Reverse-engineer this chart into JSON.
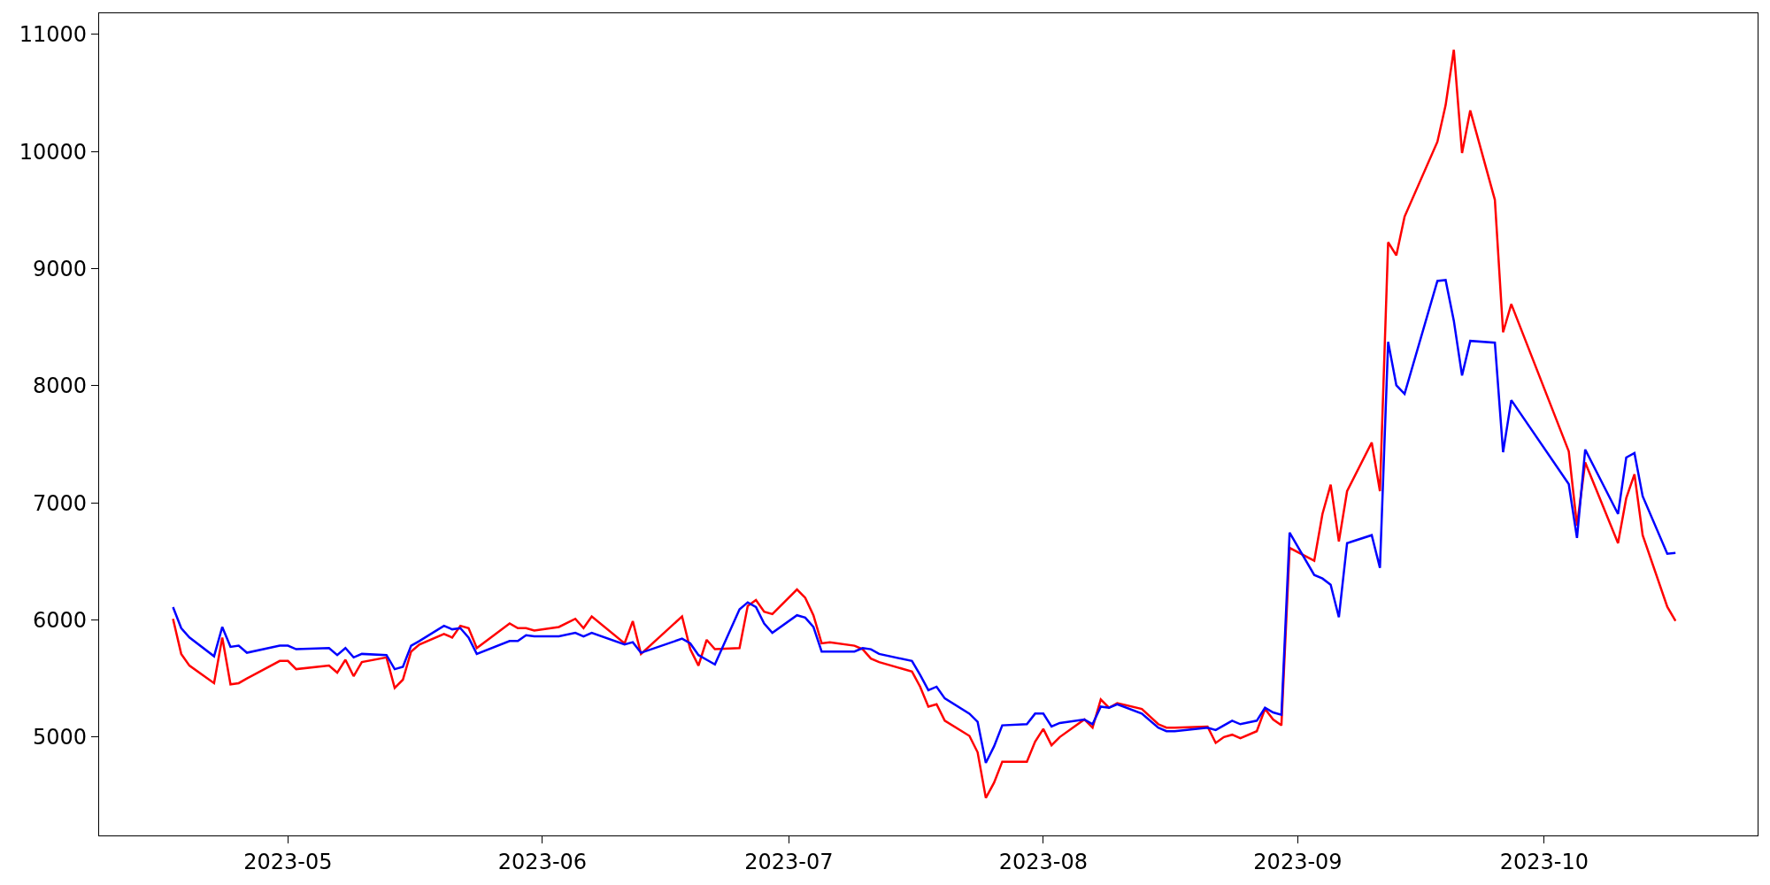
{
  "chart_data": {
    "type": "line",
    "x": [
      "2023-04-17",
      "2023-04-18",
      "2023-04-19",
      "2023-04-22",
      "2023-04-23",
      "2023-04-24",
      "2023-04-25",
      "2023-04-26",
      "2023-04-30",
      "2023-05-01",
      "2023-05-02",
      "2023-05-06",
      "2023-05-07",
      "2023-05-08",
      "2023-05-09",
      "2023-05-10",
      "2023-05-13",
      "2023-05-14",
      "2023-05-15",
      "2023-05-16",
      "2023-05-17",
      "2023-05-20",
      "2023-05-21",
      "2023-05-22",
      "2023-05-23",
      "2023-05-24",
      "2023-05-28",
      "2023-05-29",
      "2023-05-30",
      "2023-05-31",
      "2023-06-03",
      "2023-06-05",
      "2023-06-06",
      "2023-06-07",
      "2023-06-11",
      "2023-06-12",
      "2023-06-13",
      "2023-06-18",
      "2023-06-19",
      "2023-06-20",
      "2023-06-21",
      "2023-06-22",
      "2023-06-25",
      "2023-06-26",
      "2023-06-27",
      "2023-06-28",
      "2023-06-29",
      "2023-07-02",
      "2023-07-03",
      "2023-07-04",
      "2023-07-05",
      "2023-07-06",
      "2023-07-09",
      "2023-07-10",
      "2023-07-11",
      "2023-07-12",
      "2023-07-16",
      "2023-07-17",
      "2023-07-18",
      "2023-07-19",
      "2023-07-20",
      "2023-07-23",
      "2023-07-24",
      "2023-07-25",
      "2023-07-26",
      "2023-07-27",
      "2023-07-30",
      "2023-07-31",
      "2023-08-01",
      "2023-08-02",
      "2023-08-03",
      "2023-08-06",
      "2023-08-07",
      "2023-08-08",
      "2023-08-09",
      "2023-08-10",
      "2023-08-13",
      "2023-08-15",
      "2023-08-16",
      "2023-08-17",
      "2023-08-21",
      "2023-08-22",
      "2023-08-23",
      "2023-08-24",
      "2023-08-25",
      "2023-08-27",
      "2023-08-28",
      "2023-08-29",
      "2023-08-30",
      "2023-08-31",
      "2023-09-03",
      "2023-09-04",
      "2023-09-05",
      "2023-09-06",
      "2023-09-07",
      "2023-09-10",
      "2023-09-11",
      "2023-09-12",
      "2023-09-13",
      "2023-09-14",
      "2023-09-18",
      "2023-09-19",
      "2023-09-20",
      "2023-09-21",
      "2023-09-22",
      "2023-09-25",
      "2023-09-26",
      "2023-09-27",
      "2023-10-04",
      "2023-10-05",
      "2023-10-06",
      "2023-10-10",
      "2023-10-11",
      "2023-10-12",
      "2023-10-13",
      "2023-10-16",
      "2023-10-17"
    ],
    "series": [
      {
        "color": "#ff0000",
        "values": [
          6010,
          5710,
          5610,
          5460,
          5850,
          5450,
          5460,
          5500,
          5650,
          5650,
          5580,
          5610,
          5550,
          5660,
          5520,
          5640,
          5680,
          5420,
          5490,
          5730,
          5790,
          5880,
          5850,
          5950,
          5930,
          5760,
          5970,
          5930,
          5930,
          5910,
          5940,
          6010,
          5930,
          6030,
          5800,
          5990,
          5710,
          6030,
          5750,
          5610,
          5830,
          5750,
          5760,
          6120,
          6170,
          6070,
          6050,
          6260,
          6190,
          6040,
          5800,
          5810,
          5780,
          5750,
          5670,
          5640,
          5560,
          5430,
          5260,
          5280,
          5140,
          5010,
          4870,
          4480,
          4610,
          4790,
          4790,
          4960,
          5070,
          4930,
          5000,
          5150,
          5080,
          5320,
          5250,
          5290,
          5240,
          5110,
          5080,
          5080,
          5090,
          4950,
          5000,
          5020,
          4990,
          5050,
          5240,
          5150,
          5100,
          6615,
          6505,
          6905,
          7155,
          6670,
          7100,
          7515,
          7100,
          9225,
          9113,
          9443,
          10083,
          10395,
          10868,
          9986,
          10350,
          9587,
          8456,
          8697,
          7440,
          6805,
          7345,
          6656,
          7040,
          7244,
          6724,
          6112,
          5992
        ]
      },
      {
        "color": "#0000ff",
        "values": [
          6110,
          5930,
          5850,
          5690,
          5940,
          5770,
          5780,
          5720,
          5780,
          5780,
          5750,
          5760,
          5700,
          5760,
          5680,
          5710,
          5700,
          5580,
          5600,
          5780,
          5820,
          5950,
          5920,
          5930,
          5850,
          5710,
          5820,
          5820,
          5870,
          5860,
          5860,
          5890,
          5860,
          5890,
          5790,
          5810,
          5720,
          5840,
          5800,
          5700,
          5660,
          5620,
          6090,
          6150,
          6110,
          5970,
          5890,
          6040,
          6020,
          5940,
          5730,
          5730,
          5730,
          5760,
          5750,
          5710,
          5650,
          5530,
          5400,
          5430,
          5330,
          5200,
          5130,
          4780,
          4920,
          5100,
          5110,
          5200,
          5200,
          5090,
          5120,
          5150,
          5110,
          5260,
          5250,
          5280,
          5200,
          5080,
          5050,
          5050,
          5080,
          5060,
          5100,
          5140,
          5110,
          5140,
          5250,
          5210,
          5190,
          6746,
          6384,
          6354,
          6300,
          6023,
          6656,
          6724,
          6445,
          8374,
          8003,
          7930,
          8895,
          8902,
          8555,
          8087,
          8383,
          8368,
          7432,
          7877,
          7160,
          6700,
          7455,
          6905,
          7387,
          7425,
          7056,
          6565,
          6572
        ]
      }
    ],
    "xlim": [
      "2023-04-08",
      "2023-10-27"
    ],
    "xticks": [
      {
        "value": "2023-05-01",
        "label": "2023-05"
      },
      {
        "value": "2023-06-01",
        "label": "2023-06"
      },
      {
        "value": "2023-07-01",
        "label": "2023-07"
      },
      {
        "value": "2023-08-01",
        "label": "2023-08"
      },
      {
        "value": "2023-09-01",
        "label": "2023-09"
      },
      {
        "value": "2023-10-01",
        "label": "2023-10"
      }
    ],
    "ylim": [
      4160,
      11180
    ],
    "yticks": [
      5000,
      6000,
      7000,
      8000,
      9000,
      10000,
      11000
    ],
    "line_style": "solid",
    "marker": "none"
  }
}
